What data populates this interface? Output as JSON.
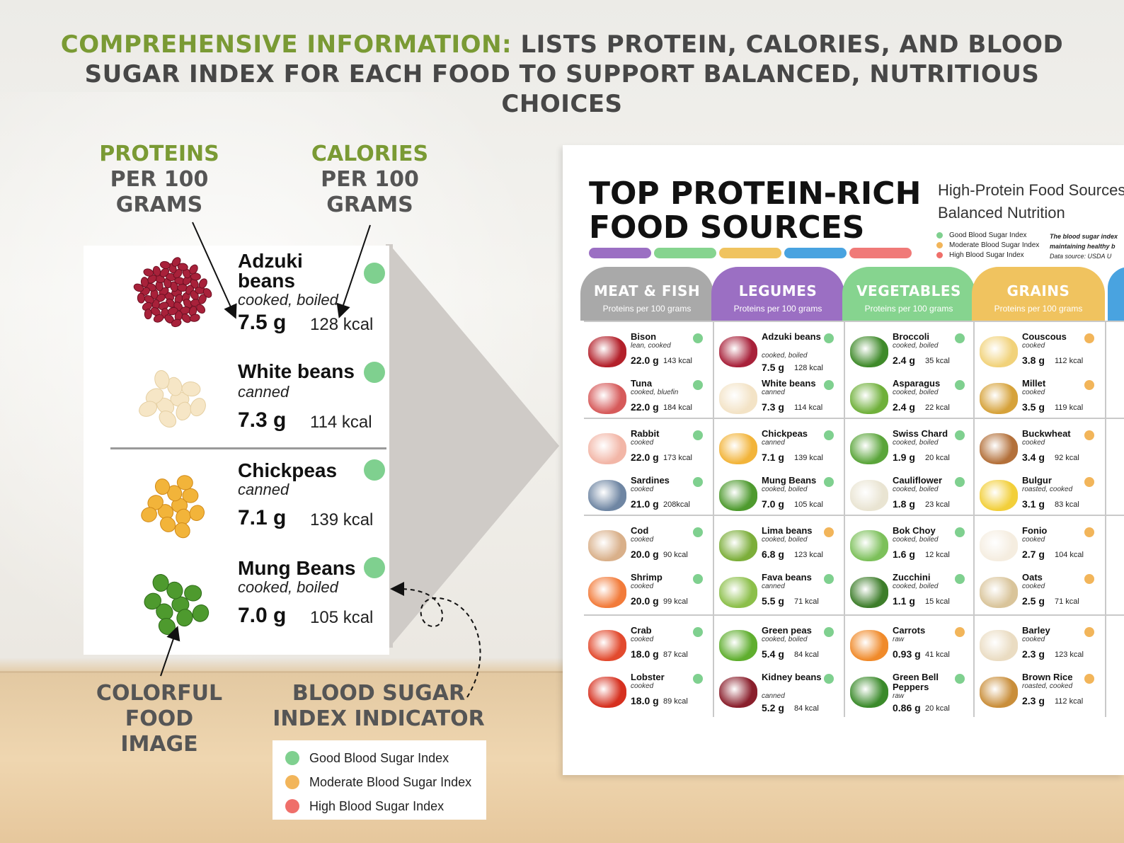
{
  "headline": {
    "accent": "COMPREHENSIVE INFORMATION:",
    "rest_line1": " LISTS PROTEIN, CALORIES, AND BLOOD",
    "line2": "SUGAR INDEX FOR EACH FOOD TO SUPPORT BALANCED, NUTRITIOUS CHOICES"
  },
  "callouts": {
    "proteins": {
      "green": "PROTEINS",
      "rest1": "PER 100",
      "rest2": "GRAMS"
    },
    "calories": {
      "green": "CALORIES",
      "rest1": "PER 100",
      "rest2": "GRAMS"
    },
    "image": {
      "l1": "COLORFUL",
      "l2": "FOOD",
      "l3": "IMAGE"
    },
    "indicator": {
      "l1": "BLOOD SUGAR",
      "l2": "INDEX INDICATOR"
    }
  },
  "colors": {
    "good": "#7fd08f",
    "moderate": "#f2b55a",
    "high": "#ef6f6a"
  },
  "zoom_items": [
    {
      "name": "Adzuki beans",
      "name1": "Adzuki",
      "name2": "beans",
      "prep": "cooked, boiled",
      "protein": "7.5 g",
      "kcal": "128 kcal",
      "icon": "adzuki-beans-icon",
      "color": "#a8213a"
    },
    {
      "name": "White beans",
      "prep": "canned",
      "protein": "7.3 g",
      "kcal": "114 kcal",
      "icon": "white-beans-icon",
      "color": "#f6e6c6"
    },
    {
      "name": "Chickpeas",
      "prep": "canned",
      "protein": "7.1 g",
      "kcal": "139 kcal",
      "icon": "chickpeas-icon",
      "color": "#f2b43a"
    },
    {
      "name": "Mung Beans",
      "prep": "cooked, boiled",
      "protein": "7.0 g",
      "kcal": "105 kcal",
      "icon": "mung-beans-icon",
      "color": "#4e9a2e"
    }
  ],
  "legend": [
    {
      "label": "Good Blood Sugar Index",
      "level": "good"
    },
    {
      "label": "Moderate Blood Sugar Index",
      "level": "moderate"
    },
    {
      "label": "High Blood Sugar Index",
      "level": "high"
    }
  ],
  "poster": {
    "title1": "TOP PROTEIN-RICH",
    "title2": "FOOD SOURCES",
    "subtitle1": "High-Protein Food Sources",
    "subtitle2": "Balanced Nutrition",
    "legend": [
      "Good Blood Sugar Index",
      "Moderate Blood Sugar Index",
      "High Blood Sugar Index"
    ],
    "note1": "The blood sugar index",
    "note2": "maintaining healthy b",
    "note3": "Data source: USDA U",
    "bar_colors": [
      "#9b6fc3",
      "#86d48f",
      "#f0c35f",
      "#49a3e0",
      "#f07a78"
    ],
    "categories": [
      {
        "name": "MEAT & FISH",
        "sub": "Proteins per 100 grams",
        "color": "#a9a9a9",
        "items": [
          {
            "name": "Bison",
            "prep": "lean, cooked",
            "protein": "22.0 g",
            "kcal": "143 kcal",
            "level": "good",
            "icon": "bison-icon",
            "tint": "#b3202a"
          },
          {
            "name": "Tuna",
            "prep": "cooked, bluefin",
            "protein": "22.0 g",
            "kcal": "184 kcal",
            "level": "good",
            "icon": "tuna-icon",
            "tint": "#d65a5a"
          },
          {
            "name": "Rabbit",
            "prep": "cooked",
            "protein": "22.0 g",
            "kcal": "173 kcal",
            "level": "good",
            "icon": "rabbit-icon",
            "tint": "#f2b6a7"
          },
          {
            "name": "Sardines",
            "prep": "cooked",
            "protein": "21.0 g",
            "kcal": "208kcal",
            "level": "good",
            "icon": "sardines-icon",
            "tint": "#6f86a3"
          },
          {
            "name": "Cod",
            "prep": "cooked",
            "protein": "20.0 g",
            "kcal": "90 kcal",
            "level": "good",
            "icon": "cod-icon",
            "tint": "#d9b08a"
          },
          {
            "name": "Shrimp",
            "prep": "cooked",
            "protein": "20.0 g",
            "kcal": "99 kcal",
            "level": "good",
            "icon": "shrimp-icon",
            "tint": "#f27b3a"
          },
          {
            "name": "Crab",
            "prep": "cooked",
            "protein": "18.0 g",
            "kcal": "87 kcal",
            "level": "good",
            "icon": "crab-icon",
            "tint": "#e24a2e"
          },
          {
            "name": "Lobster",
            "prep": "cooked",
            "protein": "18.0 g",
            "kcal": "89 kcal",
            "level": "good",
            "icon": "lobster-icon",
            "tint": "#d6301f"
          }
        ]
      },
      {
        "name": "LEGUMES",
        "sub": "Proteins per 100 grams",
        "color": "#9b6fc3",
        "items": [
          {
            "name": "Adzuki beans",
            "prep": "cooked, boiled",
            "protein": "7.5 g",
            "kcal": "128 kcal",
            "level": "good",
            "icon": "adzuki-beans-icon",
            "tint": "#a8213a"
          },
          {
            "name": "White beans",
            "prep": "canned",
            "protein": "7.3 g",
            "kcal": "114 kcal",
            "level": "good",
            "icon": "white-beans-icon",
            "tint": "#f3e3c6"
          },
          {
            "name": "Chickpeas",
            "prep": "canned",
            "protein": "7.1 g",
            "kcal": "139 kcal",
            "level": "good",
            "icon": "chickpeas-icon",
            "tint": "#f2b43a"
          },
          {
            "name": "Mung Beans",
            "prep": "cooked, boiled",
            "protein": "7.0 g",
            "kcal": "105 kcal",
            "level": "good",
            "icon": "mung-beans-icon",
            "tint": "#4e9a2e"
          },
          {
            "name": "Lima beans",
            "prep": "cooked, boiled",
            "protein": "6.8 g",
            "kcal": "123 kcal",
            "level": "moderate",
            "icon": "lima-beans-icon",
            "tint": "#7cae3a"
          },
          {
            "name": "Fava beans",
            "prep": "canned",
            "protein": "5.5 g",
            "kcal": "71 kcal",
            "level": "good",
            "icon": "fava-beans-icon",
            "tint": "#8cbf4a"
          },
          {
            "name": "Green peas",
            "prep": "cooked, boiled",
            "protein": "5.4 g",
            "kcal": "84 kcal",
            "level": "good",
            "icon": "green-peas-icon",
            "tint": "#5fae2e"
          },
          {
            "name": "Kidney beans",
            "prep": "canned",
            "protein": "5.2 g",
            "kcal": "84 kcal",
            "level": "good",
            "icon": "kidney-beans-icon",
            "tint": "#8a1f2c"
          }
        ]
      },
      {
        "name": "VEGETABLES",
        "sub": "Proteins per 100 grams",
        "color": "#86d48f",
        "items": [
          {
            "name": "Broccoli",
            "prep": "cooked, boiled",
            "protein": "2.4 g",
            "kcal": "35 kcal",
            "level": "good",
            "icon": "broccoli-icon",
            "tint": "#3f8a2a"
          },
          {
            "name": "Asparagus",
            "prep": "cooked, boiled",
            "protein": "2.4 g",
            "kcal": "22 kcal",
            "level": "good",
            "icon": "asparagus-icon",
            "tint": "#6fb03a"
          },
          {
            "name": "Swiss Chard",
            "prep": "cooked, boiled",
            "protein": "1.9 g",
            "kcal": "20 kcal",
            "level": "good",
            "icon": "swiss-chard-icon",
            "tint": "#5aa53a"
          },
          {
            "name": "Cauliflower",
            "prep": "cooked, boiled",
            "protein": "1.8 g",
            "kcal": "23 kcal",
            "level": "good",
            "icon": "cauliflower-icon",
            "tint": "#e9e4d2"
          },
          {
            "name": "Bok Choy",
            "prep": "cooked, boiled",
            "protein": "1.6 g",
            "kcal": "12 kcal",
            "level": "good",
            "icon": "bok-choy-icon",
            "tint": "#7cc05a"
          },
          {
            "name": "Zucchini",
            "prep": "cooked, boiled",
            "protein": "1.1 g",
            "kcal": "15 kcal",
            "level": "good",
            "icon": "zucchini-icon",
            "tint": "#3d7d2a"
          },
          {
            "name": "Carrots",
            "prep": "raw",
            "protein": "0.93 g",
            "kcal": "41 kcal",
            "level": "moderate",
            "icon": "carrots-icon",
            "tint": "#f08a2a"
          },
          {
            "name": "Green Bell Peppers",
            "prep": "raw",
            "protein": "0.86 g",
            "kcal": "20 kcal",
            "level": "good",
            "icon": "green-bell-pepper-icon",
            "tint": "#3a8a2a"
          }
        ]
      },
      {
        "name": "GRAINS",
        "sub": "Proteins per 100 grams",
        "color": "#f0c35f",
        "items": [
          {
            "name": "Couscous",
            "prep": "cooked",
            "protein": "3.8 g",
            "kcal": "112 kcal",
            "level": "moderate",
            "icon": "couscous-icon",
            "tint": "#f1d27a"
          },
          {
            "name": "Millet",
            "prep": "cooked",
            "protein": "3.5 g",
            "kcal": "119 kcal",
            "level": "moderate",
            "icon": "millet-icon",
            "tint": "#d6a23a"
          },
          {
            "name": "Buckwheat",
            "prep": "cooked",
            "protein": "3.4 g",
            "kcal": "92 kcal",
            "level": "moderate",
            "icon": "buckwheat-icon",
            "tint": "#b3703a"
          },
          {
            "name": "Bulgur",
            "prep": "roasted, cooked",
            "protein": "3.1 g",
            "kcal": "83 kcal",
            "level": "moderate",
            "icon": "bulgur-icon",
            "tint": "#f2cf3a"
          },
          {
            "name": "Fonio",
            "prep": "cooked",
            "protein": "2.7 g",
            "kcal": "104 kcal",
            "level": "moderate",
            "icon": "fonio-icon",
            "tint": "#f5ede0"
          },
          {
            "name": "Oats",
            "prep": "cooked",
            "protein": "2.5 g",
            "kcal": "71 kcal",
            "level": "moderate",
            "icon": "oats-icon",
            "tint": "#d9c49a"
          },
          {
            "name": "Barley",
            "prep": "cooked",
            "protein": "2.3 g",
            "kcal": "123 kcal",
            "level": "moderate",
            "icon": "barley-icon",
            "tint": "#eadcc2"
          },
          {
            "name": "Brown Rice",
            "prep": "roasted, cooked",
            "protein": "2.3 g",
            "kcal": "112 kcal",
            "level": "moderate",
            "icon": "brown-rice-icon",
            "tint": "#c98e3a"
          }
        ]
      }
    ]
  }
}
